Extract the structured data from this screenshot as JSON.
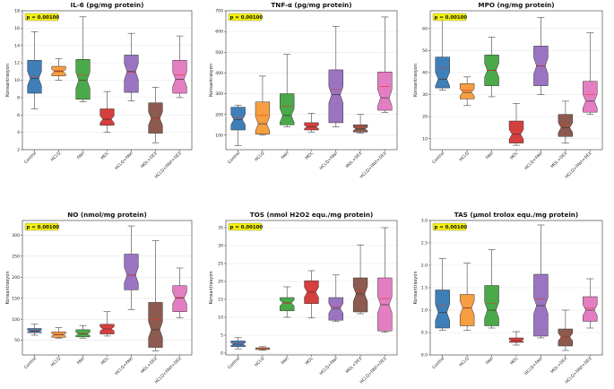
{
  "chart_data": [
    {
      "type": "boxplot",
      "title": "IL-6 (pg/mg protein)",
      "ylabel": "Konsantrasyon",
      "pvalue": "p = 0.00100",
      "ylim": [
        2,
        18
      ],
      "yticks": [
        2,
        4,
        6,
        8,
        10,
        12,
        14,
        16,
        18
      ],
      "ytick_labels": [
        "2",
        "4",
        "6",
        "8",
        "10",
        "12",
        "14",
        "16",
        "18"
      ],
      "categories": [
        "Control",
        "HCLQ",
        "FAVI",
        "MOL",
        "HCLQ+FAVI",
        "MOL+DEX",
        "HCLQ+FAVI+DEX"
      ],
      "boxes": [
        {
          "whislo": 6.7,
          "q1": 8.5,
          "med": 10.2,
          "q3": 12.3,
          "whishi": 15.6,
          "mean": 10.4
        },
        {
          "whislo": 10.0,
          "q1": 10.5,
          "med": 11.0,
          "q3": 11.6,
          "whishi": 12.5,
          "mean": 11.1
        },
        {
          "whislo": 7.5,
          "q1": 7.8,
          "med": 10.0,
          "q3": 12.4,
          "whishi": 17.3,
          "mean": 10.6
        },
        {
          "whislo": 4.0,
          "q1": 4.8,
          "med": 5.5,
          "q3": 6.7,
          "whishi": 8.7,
          "mean": 5.6
        },
        {
          "whislo": 7.6,
          "q1": 8.6,
          "med": 11.0,
          "q3": 12.9,
          "whishi": 15.4,
          "mean": 10.9
        },
        {
          "whislo": 2.8,
          "q1": 3.9,
          "med": 5.6,
          "q3": 7.4,
          "whishi": 9.2,
          "mean": 5.6
        },
        {
          "whislo": 8.0,
          "q1": 8.5,
          "med": 10.1,
          "q3": 12.3,
          "whishi": 15.1,
          "mean": 10.6
        }
      ]
    },
    {
      "type": "boxplot",
      "title": "TNF-α (pg/mg protein)",
      "ylabel": "Konsantrasyon",
      "pvalue": "p = 0.00100",
      "ylim": [
        30,
        700
      ],
      "yticks": [
        100,
        200,
        300,
        400,
        500,
        600,
        700
      ],
      "ytick_labels": [
        "100",
        "200",
        "300",
        "400",
        "500",
        "600",
        "700"
      ],
      "categories": [
        "Control",
        "HCLQ",
        "FAVI",
        "MOL",
        "HCLQ+FAVI",
        "MOL+DEX",
        "HCLQ+FAVI+DEX"
      ],
      "boxes": [
        {
          "whislo": 50,
          "q1": 125,
          "med": 175,
          "q3": 235,
          "whishi": 245,
          "mean": 185
        },
        {
          "whislo": 100,
          "q1": 105,
          "med": 155,
          "q3": 260,
          "whishi": 385,
          "mean": 195
        },
        {
          "whislo": 140,
          "q1": 150,
          "med": 195,
          "q3": 300,
          "whishi": 490,
          "mean": 240
        },
        {
          "whislo": 115,
          "q1": 125,
          "med": 140,
          "q3": 160,
          "whishi": 205,
          "mean": 150
        },
        {
          "whislo": 140,
          "q1": 160,
          "med": 295,
          "q3": 415,
          "whishi": 625,
          "mean": 320
        },
        {
          "whislo": 110,
          "q1": 115,
          "med": 130,
          "q3": 150,
          "whishi": 200,
          "mean": 140
        },
        {
          "whislo": 210,
          "q1": 220,
          "med": 280,
          "q3": 405,
          "whishi": 670,
          "mean": 335
        }
      ]
    },
    {
      "type": "boxplot",
      "title": "MPO (ng/mg protein)",
      "ylabel": "Konsantrasyon",
      "pvalue": "p = 0.00100",
      "ylim": [
        5,
        68
      ],
      "yticks": [
        10,
        20,
        30,
        40,
        50,
        60
      ],
      "ytick_labels": [
        "10",
        "20",
        "30",
        "40",
        "50",
        "60"
      ],
      "categories": [
        "Control",
        "HCLQ",
        "FAVI",
        "MOL",
        "HCLQ+FAVI",
        "MOL+DEX",
        "HCLQ+FAVI+DEX"
      ],
      "boxes": [
        {
          "whislo": 32,
          "q1": 33,
          "med": 37,
          "q3": 47,
          "whishi": 65,
          "mean": 42
        },
        {
          "whislo": 25,
          "q1": 28,
          "med": 31,
          "q3": 35,
          "whishi": 38,
          "mean": 32
        },
        {
          "whislo": 29,
          "q1": 34,
          "med": 41,
          "q3": 48,
          "whishi": 56,
          "mean": 41
        },
        {
          "whislo": 7,
          "q1": 8,
          "med": 12,
          "q3": 18,
          "whishi": 26,
          "mean": 14
        },
        {
          "whislo": 30,
          "q1": 34,
          "med": 43,
          "q3": 52,
          "whishi": 65,
          "mean": 43
        },
        {
          "whislo": 8,
          "q1": 11,
          "med": 15,
          "q3": 21,
          "whishi": 27,
          "mean": 16
        },
        {
          "whislo": 21,
          "q1": 22,
          "med": 27,
          "q3": 36,
          "whishi": 58,
          "mean": 30
        }
      ]
    },
    {
      "type": "boxplot",
      "title": "NO (nmol/mg protein)",
      "ylabel": "Konsantrasyon",
      "pvalue": "p = 0.00100",
      "ylim": [
        15,
        335
      ],
      "yticks": [
        50,
        100,
        150,
        200,
        250,
        300
      ],
      "ytick_labels": [
        "50",
        "100",
        "150",
        "200",
        "250",
        "300"
      ],
      "categories": [
        "Control",
        "HCLQ",
        "FAVI",
        "MOL",
        "HCLQ+FAVI",
        "MOL+DEX",
        "HCLQ+FAVI+DEX"
      ],
      "boxes": [
        {
          "whislo": 62,
          "q1": 68,
          "med": 72,
          "q3": 78,
          "whishi": 88,
          "mean": 74
        },
        {
          "whislo": 55,
          "q1": 57,
          "med": 63,
          "q3": 70,
          "whishi": 80,
          "mean": 64
        },
        {
          "whislo": 55,
          "q1": 58,
          "med": 65,
          "q3": 75,
          "whishi": 85,
          "mean": 66
        },
        {
          "whislo": 60,
          "q1": 65,
          "med": 77,
          "q3": 88,
          "whishi": 118,
          "mean": 78
        },
        {
          "whislo": 123,
          "q1": 170,
          "med": 205,
          "q3": 255,
          "whishi": 322,
          "mean": 205
        },
        {
          "whislo": 25,
          "q1": 33,
          "med": 75,
          "q3": 140,
          "whishi": 287,
          "mean": 99
        },
        {
          "whislo": 103,
          "q1": 118,
          "med": 150,
          "q3": 180,
          "whishi": 222,
          "mean": 152
        }
      ]
    },
    {
      "type": "boxplot",
      "title": "TOS (nmol H2O2 equ./mg protein)",
      "ylabel": "Konsantrasyon",
      "pvalue": "p = 0.00100",
      "ylim": [
        -0.5,
        37
      ],
      "yticks": [
        0,
        5,
        10,
        15,
        20,
        25,
        30,
        35
      ],
      "ytick_labels": [
        "0",
        "5",
        "10",
        "15",
        "20",
        "25",
        "30",
        "35"
      ],
      "categories": [
        "Control",
        "HCLQ",
        "FAVI",
        "MOL",
        "HCLQ+FAVI",
        "MOL+DEX",
        "HCLQ+FAVI+DEX"
      ],
      "boxes": [
        {
          "whislo": 1.2,
          "q1": 1.8,
          "med": 2.5,
          "q3": 3.4,
          "whishi": 4.3,
          "mean": 2.6
        },
        {
          "whislo": 0.8,
          "q1": 1.0,
          "med": 1.3,
          "q3": 1.5,
          "whishi": 1.8,
          "mean": 1.3
        },
        {
          "whislo": 10.0,
          "q1": 11.8,
          "med": 14.0,
          "q3": 15.5,
          "whishi": 18.5,
          "mean": 13.9
        },
        {
          "whislo": 9.8,
          "q1": 13.8,
          "med": 17.0,
          "q3": 20.2,
          "whishi": 23.0,
          "mean": 17.2
        },
        {
          "whislo": 8.8,
          "q1": 9.2,
          "med": 12.5,
          "q3": 15.5,
          "whishi": 21.8,
          "mean": 13.0
        },
        {
          "whislo": 11.0,
          "q1": 11.5,
          "med": 16.5,
          "q3": 21.0,
          "whishi": 30.2,
          "mean": 17.3
        },
        {
          "whislo": 5.8,
          "q1": 6.2,
          "med": 13.5,
          "q3": 21.0,
          "whishi": 35.0,
          "mean": 15.2
        }
      ]
    },
    {
      "type": "boxplot",
      "title": "TAS (μmol trolox equ./mg protein)",
      "ylabel": "Konsantrasyon",
      "pvalue": "p = 0.00100",
      "ylim": [
        0,
        3.0
      ],
      "yticks": [
        0.0,
        0.5,
        1.0,
        1.5,
        2.0,
        2.5,
        3.0
      ],
      "ytick_labels": [
        "0.0",
        "0.5",
        "1.0",
        "1.5",
        "2.0",
        "2.5",
        "3.0"
      ],
      "categories": [
        "Control",
        "HCLQ",
        "FAVI",
        "MOL",
        "HCLQ+FAVI",
        "MOL+DEX",
        "HCLQ+FAVI+DEX"
      ],
      "boxes": [
        {
          "whislo": 0.55,
          "q1": 0.6,
          "med": 0.95,
          "q3": 1.45,
          "whishi": 2.15,
          "mean": 1.1
        },
        {
          "whislo": 0.55,
          "q1": 0.65,
          "med": 1.05,
          "q3": 1.35,
          "whishi": 2.05,
          "mean": 1.05
        },
        {
          "whislo": 0.6,
          "q1": 0.65,
          "med": 1.0,
          "q3": 1.55,
          "whishi": 2.35,
          "mean": 1.15
        },
        {
          "whislo": 0.22,
          "q1": 0.28,
          "med": 0.32,
          "q3": 0.38,
          "whishi": 0.52,
          "mean": 0.33
        },
        {
          "whislo": 0.38,
          "q1": 0.42,
          "med": 1.1,
          "q3": 1.8,
          "whishi": 2.9,
          "mean": 1.25
        },
        {
          "whislo": 0.1,
          "q1": 0.2,
          "med": 0.4,
          "q3": 0.58,
          "whishi": 1.0,
          "mean": 0.4
        },
        {
          "whislo": 0.6,
          "q1": 0.75,
          "med": 1.0,
          "q3": 1.3,
          "whishi": 1.7,
          "mean": 1.05
        }
      ]
    }
  ],
  "box_colors": [
    "#3f7fb8",
    "#f59e42",
    "#4aa94a",
    "#d43f3f",
    "#9a74c0",
    "#8c5a4e",
    "#e47ec2"
  ],
  "median_color": "#333333",
  "mean_color": "#e8331e",
  "pvalue_box_color": "#f5f20a"
}
